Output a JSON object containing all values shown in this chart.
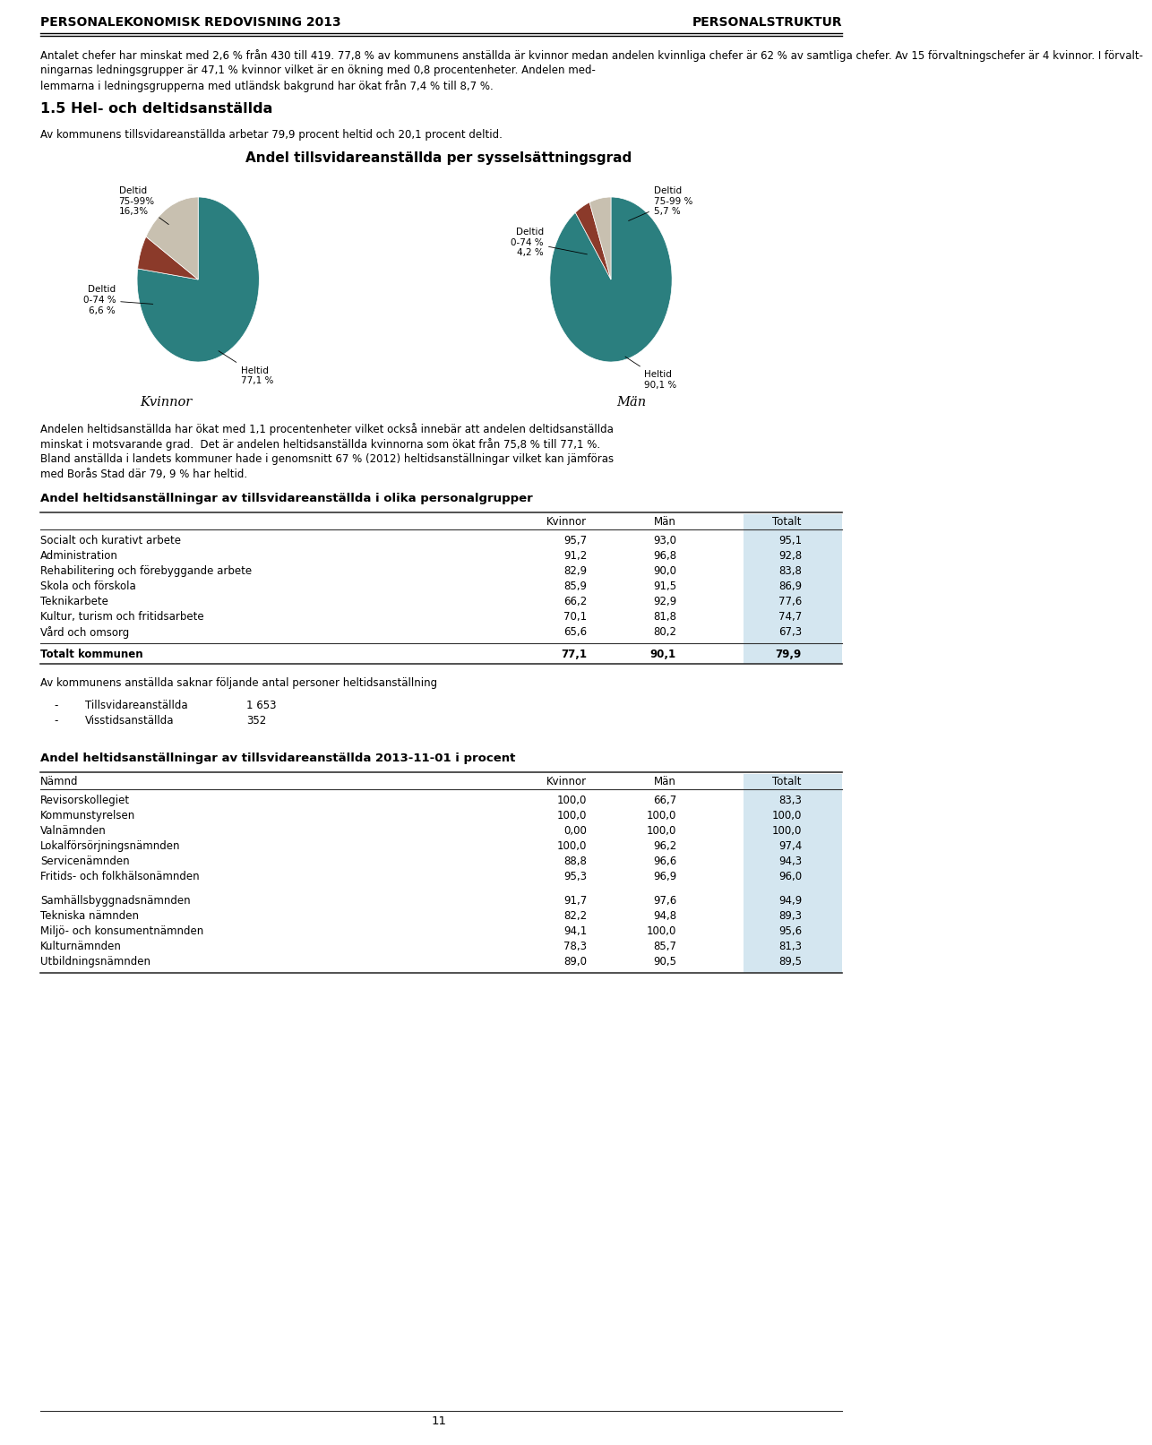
{
  "header_left": "PERSONALEKONOMISK REDOVISNING 2013",
  "header_right": "PERSONALSTRUKTUR",
  "intro_text": "Antalet chefer har minskat med 2,6 % från 430 till 419. 77,8 % av kommunens anställda är kvinnor medan andelen kvinnliga chefer är 62 % av samtliga chefer. Av 15 förvaltningschefer är 4 kvinnor. I förvalt-\nningarnas ledningsgrupper är 47,1 % kvinnor vilket är en ökning med 0,8 procentenheter. Andelen med-\nlemmarna i ledningsgrupperna med utländsk bakgrund har ökat från 7,4 % till 8,7 %.",
  "section_title": "1.5 Hel- och deltidsanställda",
  "section_text": "Av kommunens tillsvidareanställda arbetar 79,9 procent heltid och 20,1 procent deltid.",
  "pie_chart_title": "Andel tillsvidareanställda per sysselsättningsgrad",
  "women_label": "Kvinnor",
  "men_label": "Män",
  "women_slices": [
    77.1,
    6.6,
    16.3
  ],
  "men_slices": [
    90.1,
    4.2,
    5.7
  ],
  "slice_colors": [
    "#2b7f7f",
    "#8b3a2a",
    "#c8c0b0"
  ],
  "body_text1": "Andelen heltidsanställda har ökat med 1,1 procentenheter vilket också innebär att andelen deltidsanställda\nminskat i motsvarande grad.  Det är andelen heltidsanställda kvinnorna som ökat från 75,8 % till 77,1 %.\nBland anställda i landets kommuner hade i genomsnitt 67 % (2012) heltidsanställningar vilket kan jämföras\nmed Borås Stad där 79, 9 % har heltid.",
  "table1_title": "Andel heltidsanställningar av tillsvidareanställda i olika personalgrupper",
  "table1_headers": [
    "",
    "Kvinnor",
    "Män",
    "Totalt"
  ],
  "table1_rows": [
    [
      "Socialt och kurativt arbete",
      "95,7",
      "93,0",
      "95,1"
    ],
    [
      "Administration",
      "91,2",
      "96,8",
      "92,8"
    ],
    [
      "Rehabilitering och förebyggande arbete",
      "82,9",
      "90,0",
      "83,8"
    ],
    [
      "Skola och förskola",
      "85,9",
      "91,5",
      "86,9"
    ],
    [
      "Teknikarbete",
      "66,2",
      "92,9",
      "77,6"
    ],
    [
      "Kultur, turism och fritidsarbete",
      "70,1",
      "81,8",
      "74,7"
    ],
    [
      "Vård och omsorg",
      "65,6",
      "80,2",
      "67,3"
    ]
  ],
  "table1_total_row": [
    "Totalt kommunen",
    "77,1",
    "90,1",
    "79,9"
  ],
  "savings_text": "Av kommunens anställda saknar följande antal personer heltidsanställning",
  "savings_items": [
    [
      "Tillsvidareanställda",
      "1 653"
    ],
    [
      "Visstidsanställda",
      "352"
    ]
  ],
  "table2_title": "Andel heltidsanställningar av tillsvidareanställda 2013-11-01 i procent",
  "table2_headers": [
    "Nämnd",
    "Kvinnor",
    "Män",
    "Totalt"
  ],
  "table2_rows": [
    [
      "Revisorskollegiet",
      "100,0",
      "66,7",
      "83,3"
    ],
    [
      "Kommunstyrelsen",
      "100,0",
      "100,0",
      "100,0"
    ],
    [
      "Valnämnden",
      "0,00",
      "100,0",
      "100,0"
    ],
    [
      "Lokalförsörjningsnämnden",
      "100,0",
      "96,2",
      "97,4"
    ],
    [
      "Servicenämnden",
      "88,8",
      "96,6",
      "94,3"
    ],
    [
      "Fritids- och folkhälsonämnden",
      "95,3",
      "96,9",
      "96,0"
    ],
    [
      "",
      "",
      "",
      ""
    ],
    [
      "Samhällsbyggnadsnämnden",
      "91,7",
      "97,6",
      "94,9"
    ],
    [
      "Tekniska nämnden",
      "82,2",
      "94,8",
      "89,3"
    ],
    [
      "Miljö- och konsumentnämnden",
      "94,1",
      "100,0",
      "95,6"
    ],
    [
      "Kulturnämnden",
      "78,3",
      "85,7",
      "81,3"
    ],
    [
      "Utbildningsnämnden",
      "89,0",
      "90,5",
      "89,5"
    ]
  ],
  "page_number": "11",
  "background_color": "#ffffff",
  "totalt_col_bg": "#d4e6f0",
  "header_line_color": "#555555",
  "table_line_color": "#555555"
}
